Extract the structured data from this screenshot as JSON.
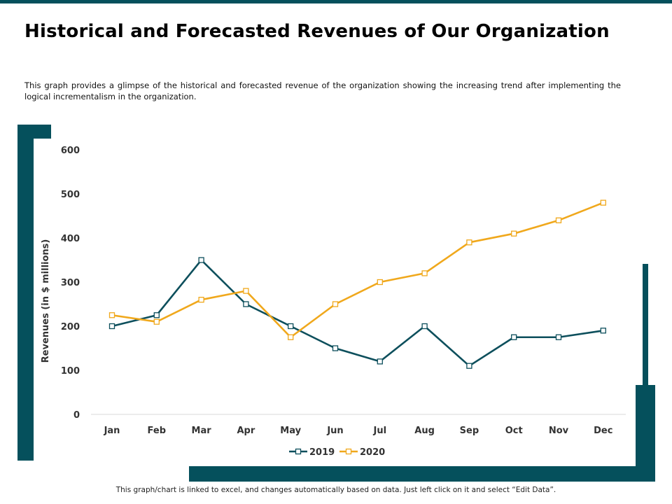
{
  "title": "Historical and Forecasted Revenues of Our Organization",
  "description": "This graph provides a glimpse of the historical and forecasted revenue of the organization  showing the increasing trend after implementing  the logical incrementalism  in the organization.",
  "footer": "This graph/chart is linked to excel,  and changes automatically based on data.  Just left click on it and select “Edit Data”.",
  "colors": {
    "accent": "#05505c",
    "series2019": "#0d4f5c",
    "series2020": "#f0a81c"
  },
  "chart_data": {
    "type": "line",
    "title": "",
    "xlabel": "",
    "ylabel": "Revenues (in $ millions)",
    "categories": [
      "Jan",
      "Feb",
      "Mar",
      "Apr",
      "May",
      "Jun",
      "Jul",
      "Aug",
      "Sep",
      "Oct",
      "Nov",
      "Dec"
    ],
    "yticks": [
      0,
      100,
      200,
      300,
      400,
      500,
      600
    ],
    "ylim": [
      0,
      600
    ],
    "grid": false,
    "legend": "bottom",
    "series": [
      {
        "name": "2019",
        "color": "#0d4f5c",
        "values": [
          200,
          225,
          350,
          250,
          200,
          150,
          120,
          200,
          110,
          175,
          175,
          190
        ]
      },
      {
        "name": "2020",
        "color": "#f0a81c",
        "values": [
          225,
          210,
          260,
          280,
          175,
          250,
          300,
          320,
          390,
          410,
          440,
          480
        ]
      }
    ]
  }
}
